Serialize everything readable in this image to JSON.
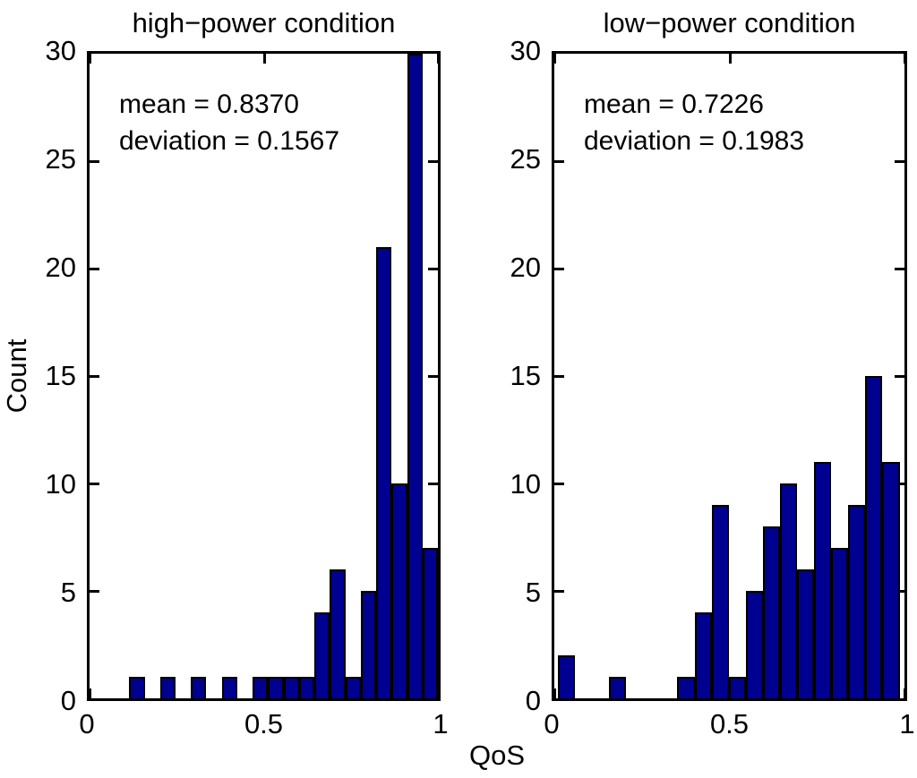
{
  "figure": {
    "xlabel": "QoS",
    "ylabel": "Count",
    "background": "#ffffff",
    "bar_fill": "#000090",
    "bar_edge": "#000000",
    "axis_color": "#000000"
  },
  "chart_data": [
    {
      "type": "bar",
      "subtype": "histogram",
      "condition": "high-power",
      "title": "high−power condition",
      "annotation_lines": [
        "mean = 0.8370",
        "deviation = 0.1567"
      ],
      "xlabel": "QoS",
      "ylabel": "Count",
      "xlim": [
        0,
        1
      ],
      "ylim": [
        0,
        30
      ],
      "xticks": [
        0,
        0.5,
        1
      ],
      "xtick_labels": [
        "0",
        "0.5",
        "1"
      ],
      "yticks": [
        0,
        5,
        10,
        15,
        20,
        25,
        30
      ],
      "ytick_labels": [
        "0",
        "5",
        "10",
        "15",
        "20",
        "25",
        "30"
      ],
      "grid": false,
      "bin_start": 0.114,
      "bin_width": 0.0443,
      "counts": [
        1,
        0,
        1,
        0,
        1,
        0,
        1,
        0,
        1,
        1,
        1,
        1,
        4,
        6,
        1,
        5,
        21,
        10,
        30,
        7
      ]
    },
    {
      "type": "bar",
      "subtype": "histogram",
      "condition": "low-power",
      "title": "low−power condition",
      "annotation_lines": [
        "mean = 0.7226",
        "deviation = 0.1983"
      ],
      "xlabel": "QoS",
      "ylabel": "Count",
      "xlim": [
        0,
        1
      ],
      "ylim": [
        0,
        30
      ],
      "xticks": [
        0,
        0.5,
        1
      ],
      "xtick_labels": [
        "0",
        "0.5",
        "1"
      ],
      "yticks": [
        0,
        5,
        10,
        15,
        20,
        25,
        30
      ],
      "ytick_labels": [
        "0",
        "5",
        "10",
        "15",
        "20",
        "25",
        "30"
      ],
      "grid": false,
      "bin_start": 0.01,
      "bin_width": 0.0488,
      "counts": [
        2,
        0,
        0,
        1,
        0,
        0,
        0,
        1,
        4,
        9,
        1,
        5,
        8,
        10,
        6,
        11,
        7,
        9,
        15,
        11
      ]
    }
  ]
}
